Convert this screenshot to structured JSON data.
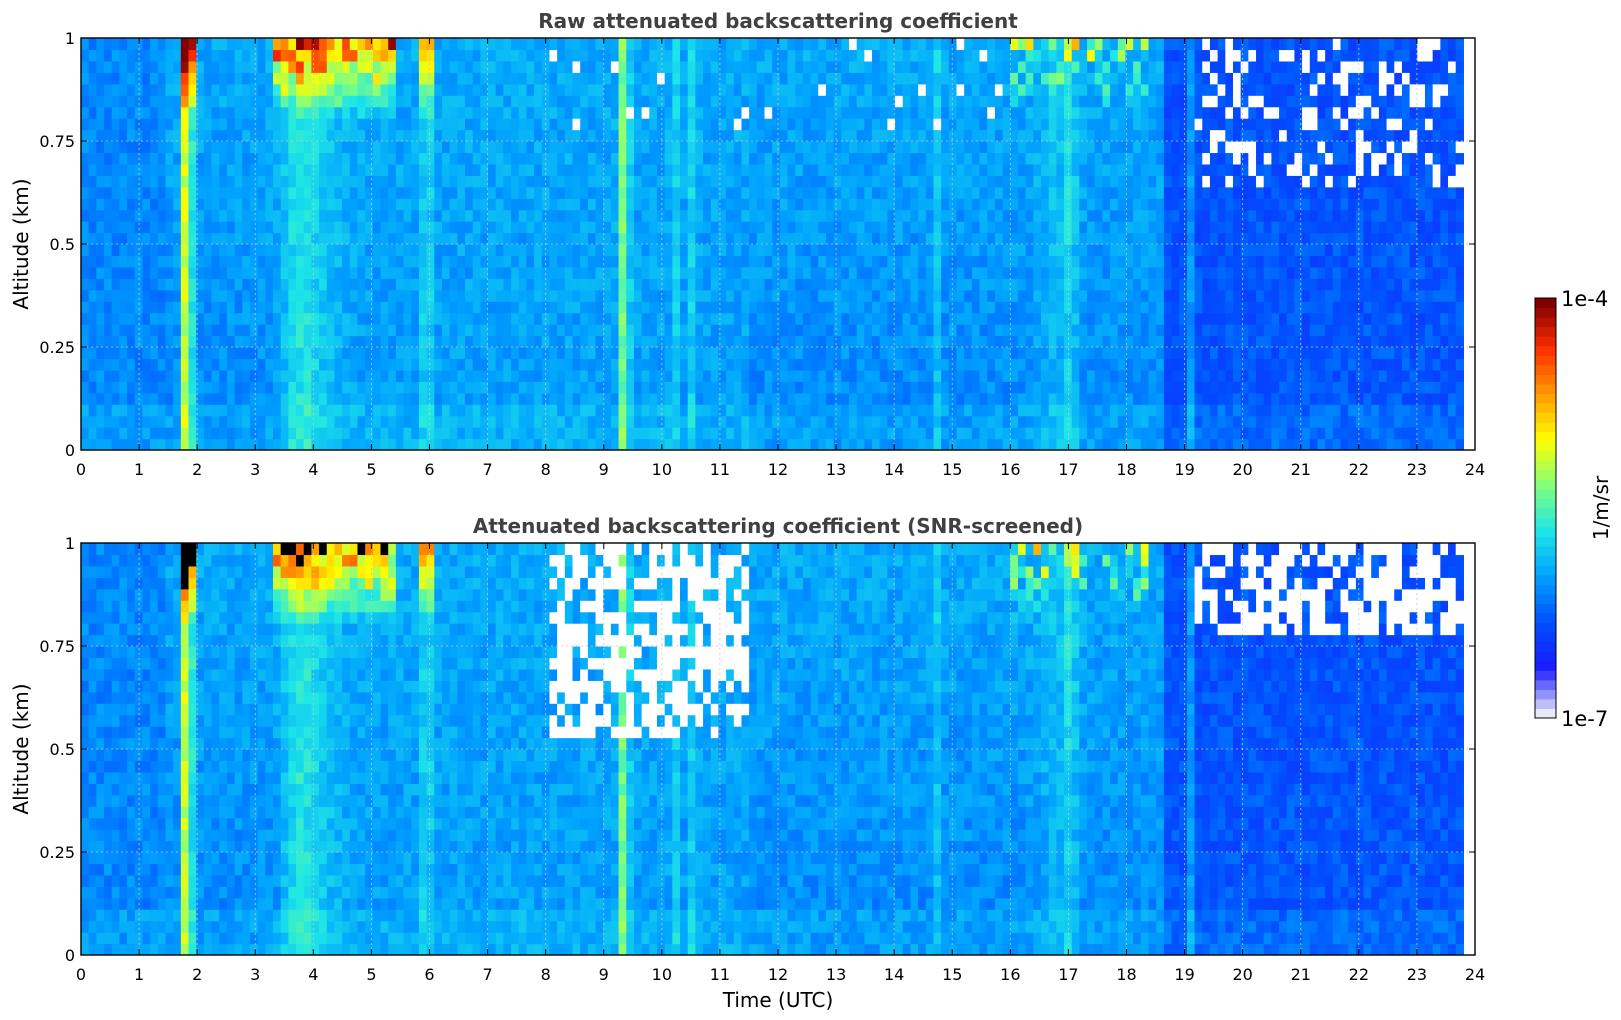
{
  "chart_data": [
    {
      "type": "heatmap",
      "title": "Raw attenuated backscattering coefficient",
      "xlabel": "",
      "ylabel": "Altitude (km)",
      "xlim": [
        0,
        24
      ],
      "ylim": [
        0,
        1
      ],
      "xticks": [
        "0",
        "1",
        "2",
        "3",
        "4",
        "5",
        "6",
        "7",
        "8",
        "9",
        "10",
        "11",
        "12",
        "13",
        "14",
        "15",
        "16",
        "17",
        "18",
        "19",
        "20",
        "21",
        "22",
        "23",
        "24"
      ],
      "yticks": [
        "0",
        "0.25",
        "0.5",
        "0.75",
        "1"
      ],
      "data_end_time": 23.8,
      "screened": false,
      "features": [
        {
          "name": "strong plume",
          "time": 1.83,
          "intensity": "high"
        },
        {
          "name": "plume",
          "time": 5.95
        },
        {
          "name": "plume",
          "time": 9.35
        },
        {
          "name": "plume",
          "time": 10.2
        },
        {
          "name": "plume",
          "time": 10.55
        },
        {
          "name": "plume",
          "time": 14.7
        },
        {
          "name": "plume",
          "time": 17.05
        },
        {
          "name": "plume",
          "time": 19.1
        },
        {
          "name": "cloud layer above 0.8 km",
          "time_range": [
            3.3,
            5.4
          ],
          "intensity": "high"
        },
        {
          "name": "cloud layer above 0.8 km",
          "time_range": [
            16.0,
            18.4
          ],
          "intensity": "high"
        }
      ]
    },
    {
      "type": "heatmap",
      "title": "Attenuated backscattering coefficient (SNR-screened)",
      "xlabel": "Time (UTC)",
      "ylabel": "Altitude (km)",
      "xlim": [
        0,
        24
      ],
      "ylim": [
        0,
        1
      ],
      "xticks": [
        "0",
        "1",
        "2",
        "3",
        "4",
        "5",
        "6",
        "7",
        "8",
        "9",
        "10",
        "11",
        "12",
        "13",
        "14",
        "15",
        "16",
        "17",
        "18",
        "19",
        "20",
        "21",
        "22",
        "23",
        "24"
      ],
      "yticks": [
        "0",
        "0.25",
        "0.5",
        "0.75",
        "1"
      ],
      "data_end_time": 23.8,
      "screened": true,
      "screened_regions": [
        {
          "time_range": [
            8.0,
            11.5
          ],
          "altitude_min": 0.52
        },
        {
          "time_range": [
            19.2,
            23.8
          ],
          "altitude_min": 0.78
        }
      ]
    }
  ],
  "colorbar": {
    "label": "1/m/sr",
    "max_label": "1e-4",
    "min_label": "1e-7",
    "scale": "log",
    "range": [
      1e-07,
      0.0001
    ],
    "colors": [
      "#e9e9fa",
      "#1a1aff",
      "#0050ff",
      "#00a0ff",
      "#1ee6e6",
      "#82ff7d",
      "#ffff00",
      "#ff9b00",
      "#ff2d00",
      "#800000"
    ]
  }
}
